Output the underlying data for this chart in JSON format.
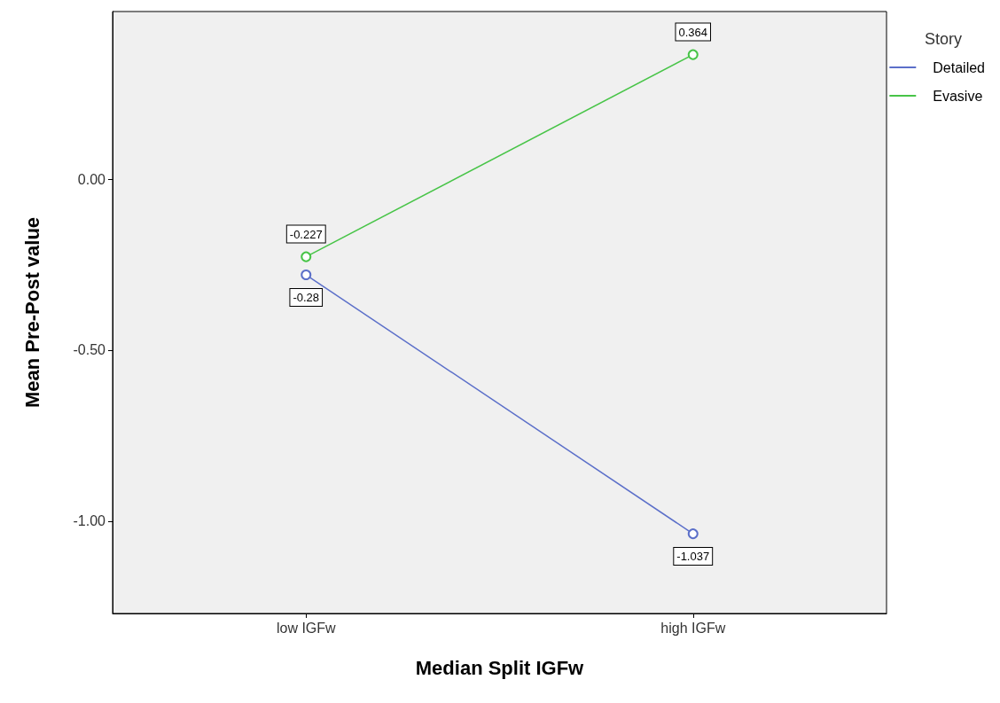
{
  "chart_data": {
    "type": "line",
    "xlabel": "Median Split IGFw",
    "ylabel": "Mean Pre-Post value",
    "legend_title": "Story",
    "categories": [
      "low IGFw",
      "high IGFw"
    ],
    "series": [
      {
        "name": "Detailed",
        "color": "#5b6fc9",
        "values": [
          -0.28,
          -1.037
        ]
      },
      {
        "name": "Evasive",
        "color": "#47c447",
        "values": [
          -0.227,
          0.364
        ]
      }
    ],
    "ylim": [
      -1.27,
      0.49
    ],
    "yticks": [
      {
        "value": -1,
        "label": "-1.00"
      },
      {
        "value": -0.5,
        "label": "-0.50"
      },
      {
        "value": 0,
        "label": "0.00"
      }
    ],
    "data_labels": true,
    "marker": "circle",
    "legend": "top right",
    "grid": false
  }
}
